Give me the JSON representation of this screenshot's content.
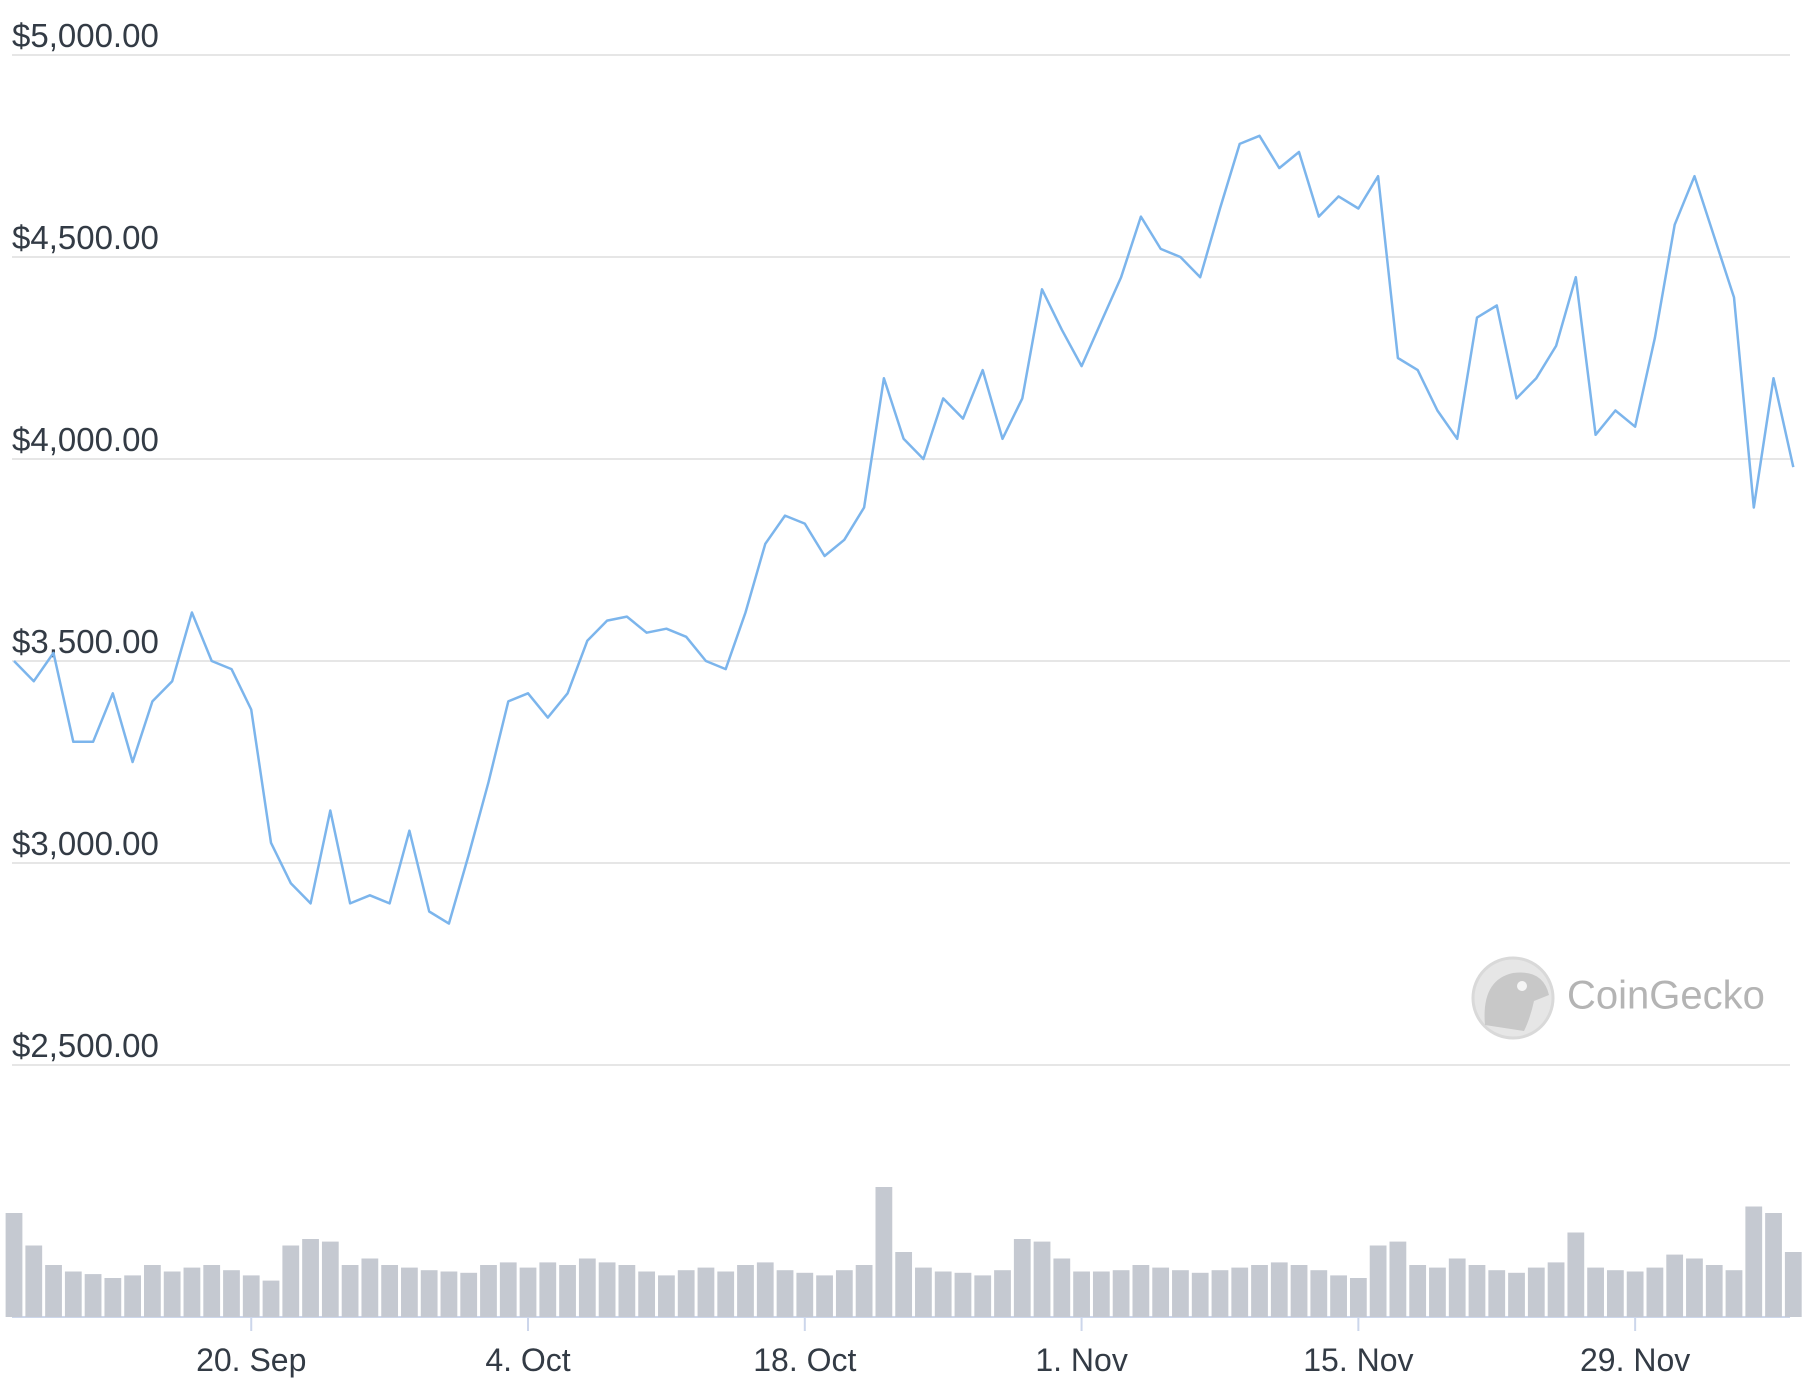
{
  "chart_data": {
    "type": "line",
    "watermark": "CoinGecko",
    "x": [
      "8. Sep",
      "9. Sep",
      "10. Sep",
      "11. Sep",
      "12. Sep",
      "13. Sep",
      "14. Sep",
      "15. Sep",
      "16. Sep",
      "17. Sep",
      "18. Sep",
      "19. Sep",
      "20. Sep",
      "21. Sep",
      "22. Sep",
      "23. Sep",
      "24. Sep",
      "25. Sep",
      "26. Sep",
      "27. Sep",
      "28. Sep",
      "29. Sep",
      "30. Sep",
      "1. Oct",
      "2. Oct",
      "3. Oct",
      "4. Oct",
      "5. Oct",
      "6. Oct",
      "7. Oct",
      "8. Oct",
      "9. Oct",
      "10. Oct",
      "11. Oct",
      "12. Oct",
      "13. Oct",
      "14. Oct",
      "15. Oct",
      "16. Oct",
      "17. Oct",
      "18. Oct",
      "19. Oct",
      "20. Oct",
      "21. Oct",
      "22. Oct",
      "23. Oct",
      "24. Oct",
      "25. Oct",
      "26. Oct",
      "27. Oct",
      "28. Oct",
      "29. Oct",
      "30. Oct",
      "31. Oct",
      "1. Nov",
      "2. Nov",
      "3. Nov",
      "4. Nov",
      "5. Nov",
      "6. Nov",
      "7. Nov",
      "8. Nov",
      "9. Nov",
      "10. Nov",
      "11. Nov",
      "12. Nov",
      "13. Nov",
      "14. Nov",
      "15. Nov",
      "16. Nov",
      "17. Nov",
      "18. Nov",
      "19. Nov",
      "20. Nov",
      "21. Nov",
      "22. Nov",
      "23. Nov",
      "24. Nov",
      "25. Nov",
      "26. Nov",
      "27. Nov",
      "28. Nov",
      "29. Nov",
      "30. Nov",
      "1. Dec",
      "2. Dec",
      "3. Dec",
      "4. Dec",
      "5. Dec",
      "6. Dec",
      "7. Dec"
    ],
    "xticks": [
      "20. Sep",
      "4. Oct",
      "18. Oct",
      "1. Nov",
      "15. Nov",
      "29. Nov"
    ],
    "series": [
      {
        "color": "#7cb5ec",
        "values": [
          3500,
          3450,
          3520,
          3300,
          3300,
          3420,
          3250,
          3400,
          3450,
          3620,
          3500,
          3480,
          3380,
          3050,
          2950,
          2900,
          3130,
          2900,
          2920,
          2900,
          3080,
          2880,
          2850,
          3020,
          3200,
          3400,
          3420,
          3360,
          3420,
          3550,
          3600,
          3610,
          3570,
          3580,
          3560,
          3500,
          3480,
          3620,
          3790,
          3860,
          3840,
          3760,
          3800,
          3880,
          4200,
          4050,
          4000,
          4150,
          4100,
          4220,
          4050,
          4150,
          4420,
          4320,
          4230,
          4340,
          4450,
          4600,
          4520,
          4500,
          4450,
          4620,
          4780,
          4800,
          4720,
          4760,
          4600,
          4650,
          4620,
          4700,
          4250,
          4220,
          4120,
          4050,
          4350,
          4380,
          4150,
          4200,
          4280,
          4450,
          4060,
          4120,
          4080,
          4300,
          4580,
          4700,
          4550,
          4400,
          3880,
          4200,
          3980
        ]
      },
      {
        "color": "#c5c9d1",
        "axis": "y2",
        "values": [
          80,
          55,
          40,
          35,
          33,
          30,
          32,
          40,
          35,
          38,
          40,
          36,
          32,
          28,
          55,
          60,
          58,
          40,
          45,
          40,
          38,
          36,
          35,
          34,
          40,
          42,
          38,
          42,
          40,
          45,
          42,
          40,
          35,
          32,
          36,
          38,
          35,
          40,
          42,
          36,
          34,
          32,
          36,
          40,
          100,
          50,
          38,
          35,
          34,
          32,
          36,
          60,
          58,
          45,
          35,
          35,
          36,
          40,
          38,
          36,
          34,
          36,
          38,
          40,
          42,
          40,
          36,
          32,
          30,
          55,
          58,
          40,
          38,
          45,
          40,
          36,
          34,
          38,
          42,
          65,
          38,
          36,
          35,
          38,
          48,
          45,
          40,
          36,
          85,
          80,
          50
        ]
      }
    ],
    "ylim": [
      2500,
      5000
    ],
    "yticks": [
      {
        "value": 2500,
        "label": "$2,500.00"
      },
      {
        "value": 3000,
        "label": "$3,000.00"
      },
      {
        "value": 3500,
        "label": "$3,500.00"
      },
      {
        "value": 4000,
        "label": "$4,000.00"
      },
      {
        "value": 4500,
        "label": "$4,500.00"
      },
      {
        "value": 5000,
        "label": "$5,000.00"
      }
    ],
    "y2lim": [
      0,
      100
    ],
    "grid": true
  }
}
